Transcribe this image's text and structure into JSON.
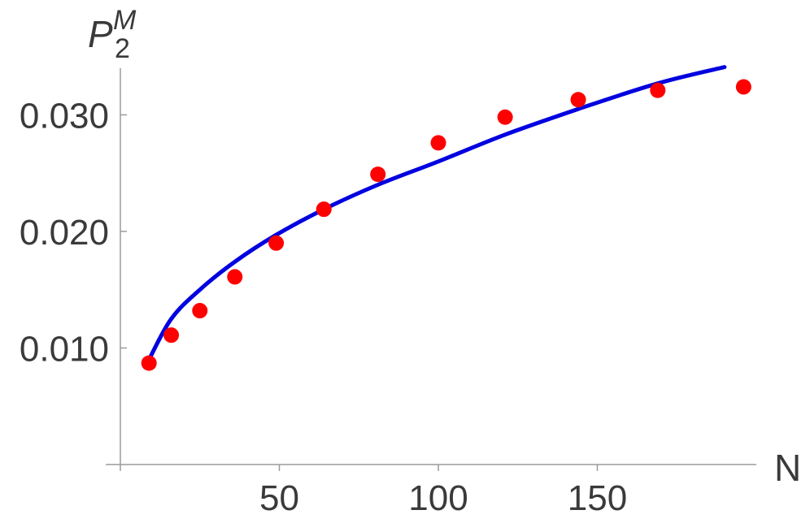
{
  "chart_data": {
    "type": "scatter",
    "x_label": "N",
    "y_label": {
      "base": "P",
      "subscript": "2",
      "superscript": "M"
    },
    "xlim": [
      0,
      200
    ],
    "ylim": [
      0,
      0.034
    ],
    "x_ticks": [
      50,
      100,
      150
    ],
    "x_tick_labels": [
      "50",
      "100",
      "150"
    ],
    "y_ticks": [
      0.01,
      0.02,
      0.03
    ],
    "y_tick_labels": [
      "0.010",
      "0.020",
      "0.030"
    ],
    "grid": false,
    "series": [
      {
        "kind": "points",
        "color": "#ff0000",
        "x": [
          9,
          16,
          25,
          36,
          49,
          64,
          81,
          100,
          121,
          144,
          169,
          196
        ],
        "y": [
          0.0087,
          0.0111,
          0.0132,
          0.0161,
          0.019,
          0.0219,
          0.0249,
          0.0276,
          0.0298,
          0.0313,
          0.0321,
          0.0324
        ]
      },
      {
        "kind": "curve",
        "color": "#0000e0",
        "x": [
          9,
          16,
          25,
          36,
          49,
          64,
          81,
          100,
          121,
          144,
          169,
          190
        ],
        "y": [
          0.009,
          0.0125,
          0.015,
          0.0174,
          0.0197,
          0.0219,
          0.024,
          0.026,
          0.0283,
          0.0305,
          0.0327,
          0.0341
        ]
      }
    ]
  }
}
